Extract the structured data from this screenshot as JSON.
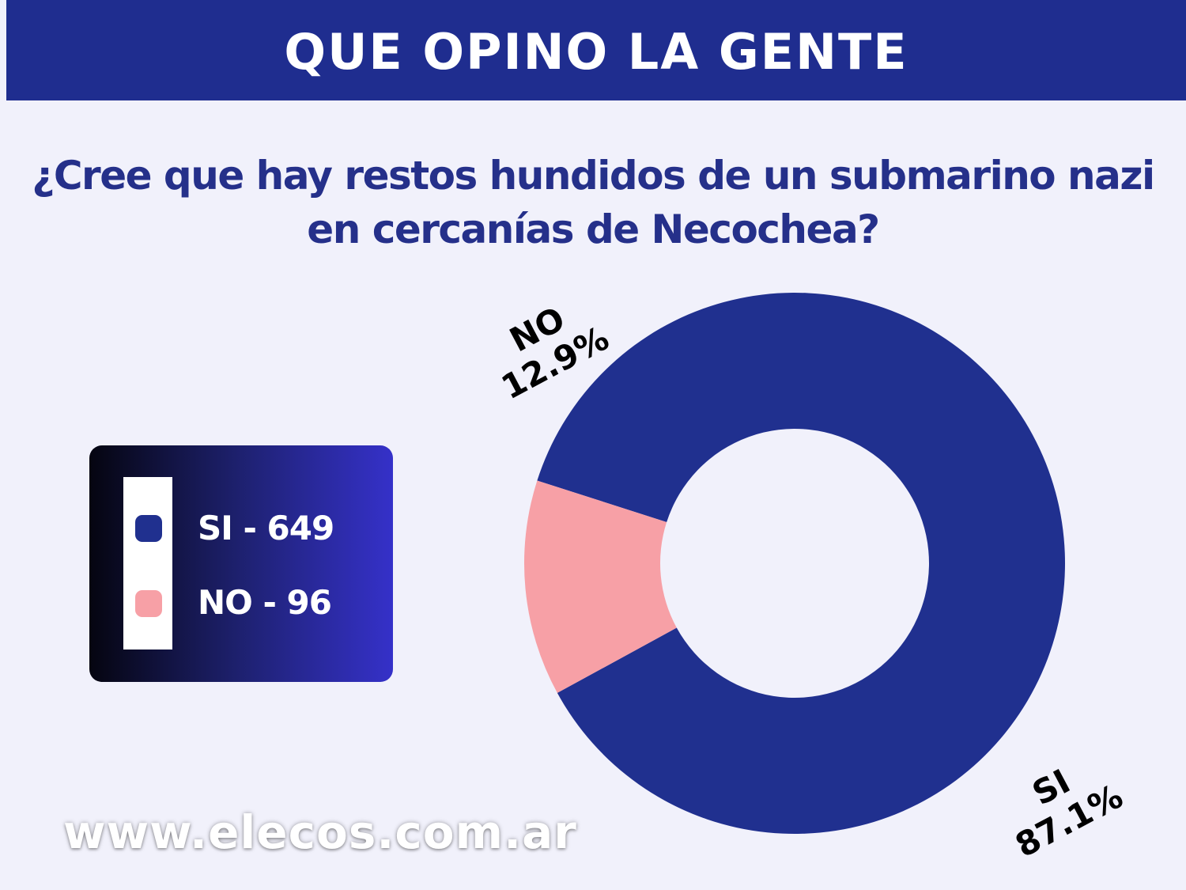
{
  "header": {
    "title": "QUE OPINO LA GENTE"
  },
  "question": "¿Cree que hay restos hundidos de un submarino nazi en cercanías de Necochea?",
  "legend": {
    "items": [
      {
        "label": "SI - 649",
        "color": "#20308f"
      },
      {
        "label": "NO - 96",
        "color": "#f7a0a6"
      }
    ]
  },
  "chart_data": {
    "type": "pie",
    "variant": "donut",
    "slices": [
      {
        "name": "SI",
        "value": 87.1,
        "percent_label": "87.1%",
        "count": 649,
        "color": "#20308f"
      },
      {
        "name": "NO",
        "value": 12.9,
        "percent_label": "12.9%",
        "count": 96,
        "color": "#f7a0a6"
      }
    ]
  },
  "footer": {
    "url": "www.elecos.com.ar"
  },
  "colors": {
    "background": "#f1f1fb",
    "header": "#1f2d8f",
    "question_text": "#25308a"
  }
}
